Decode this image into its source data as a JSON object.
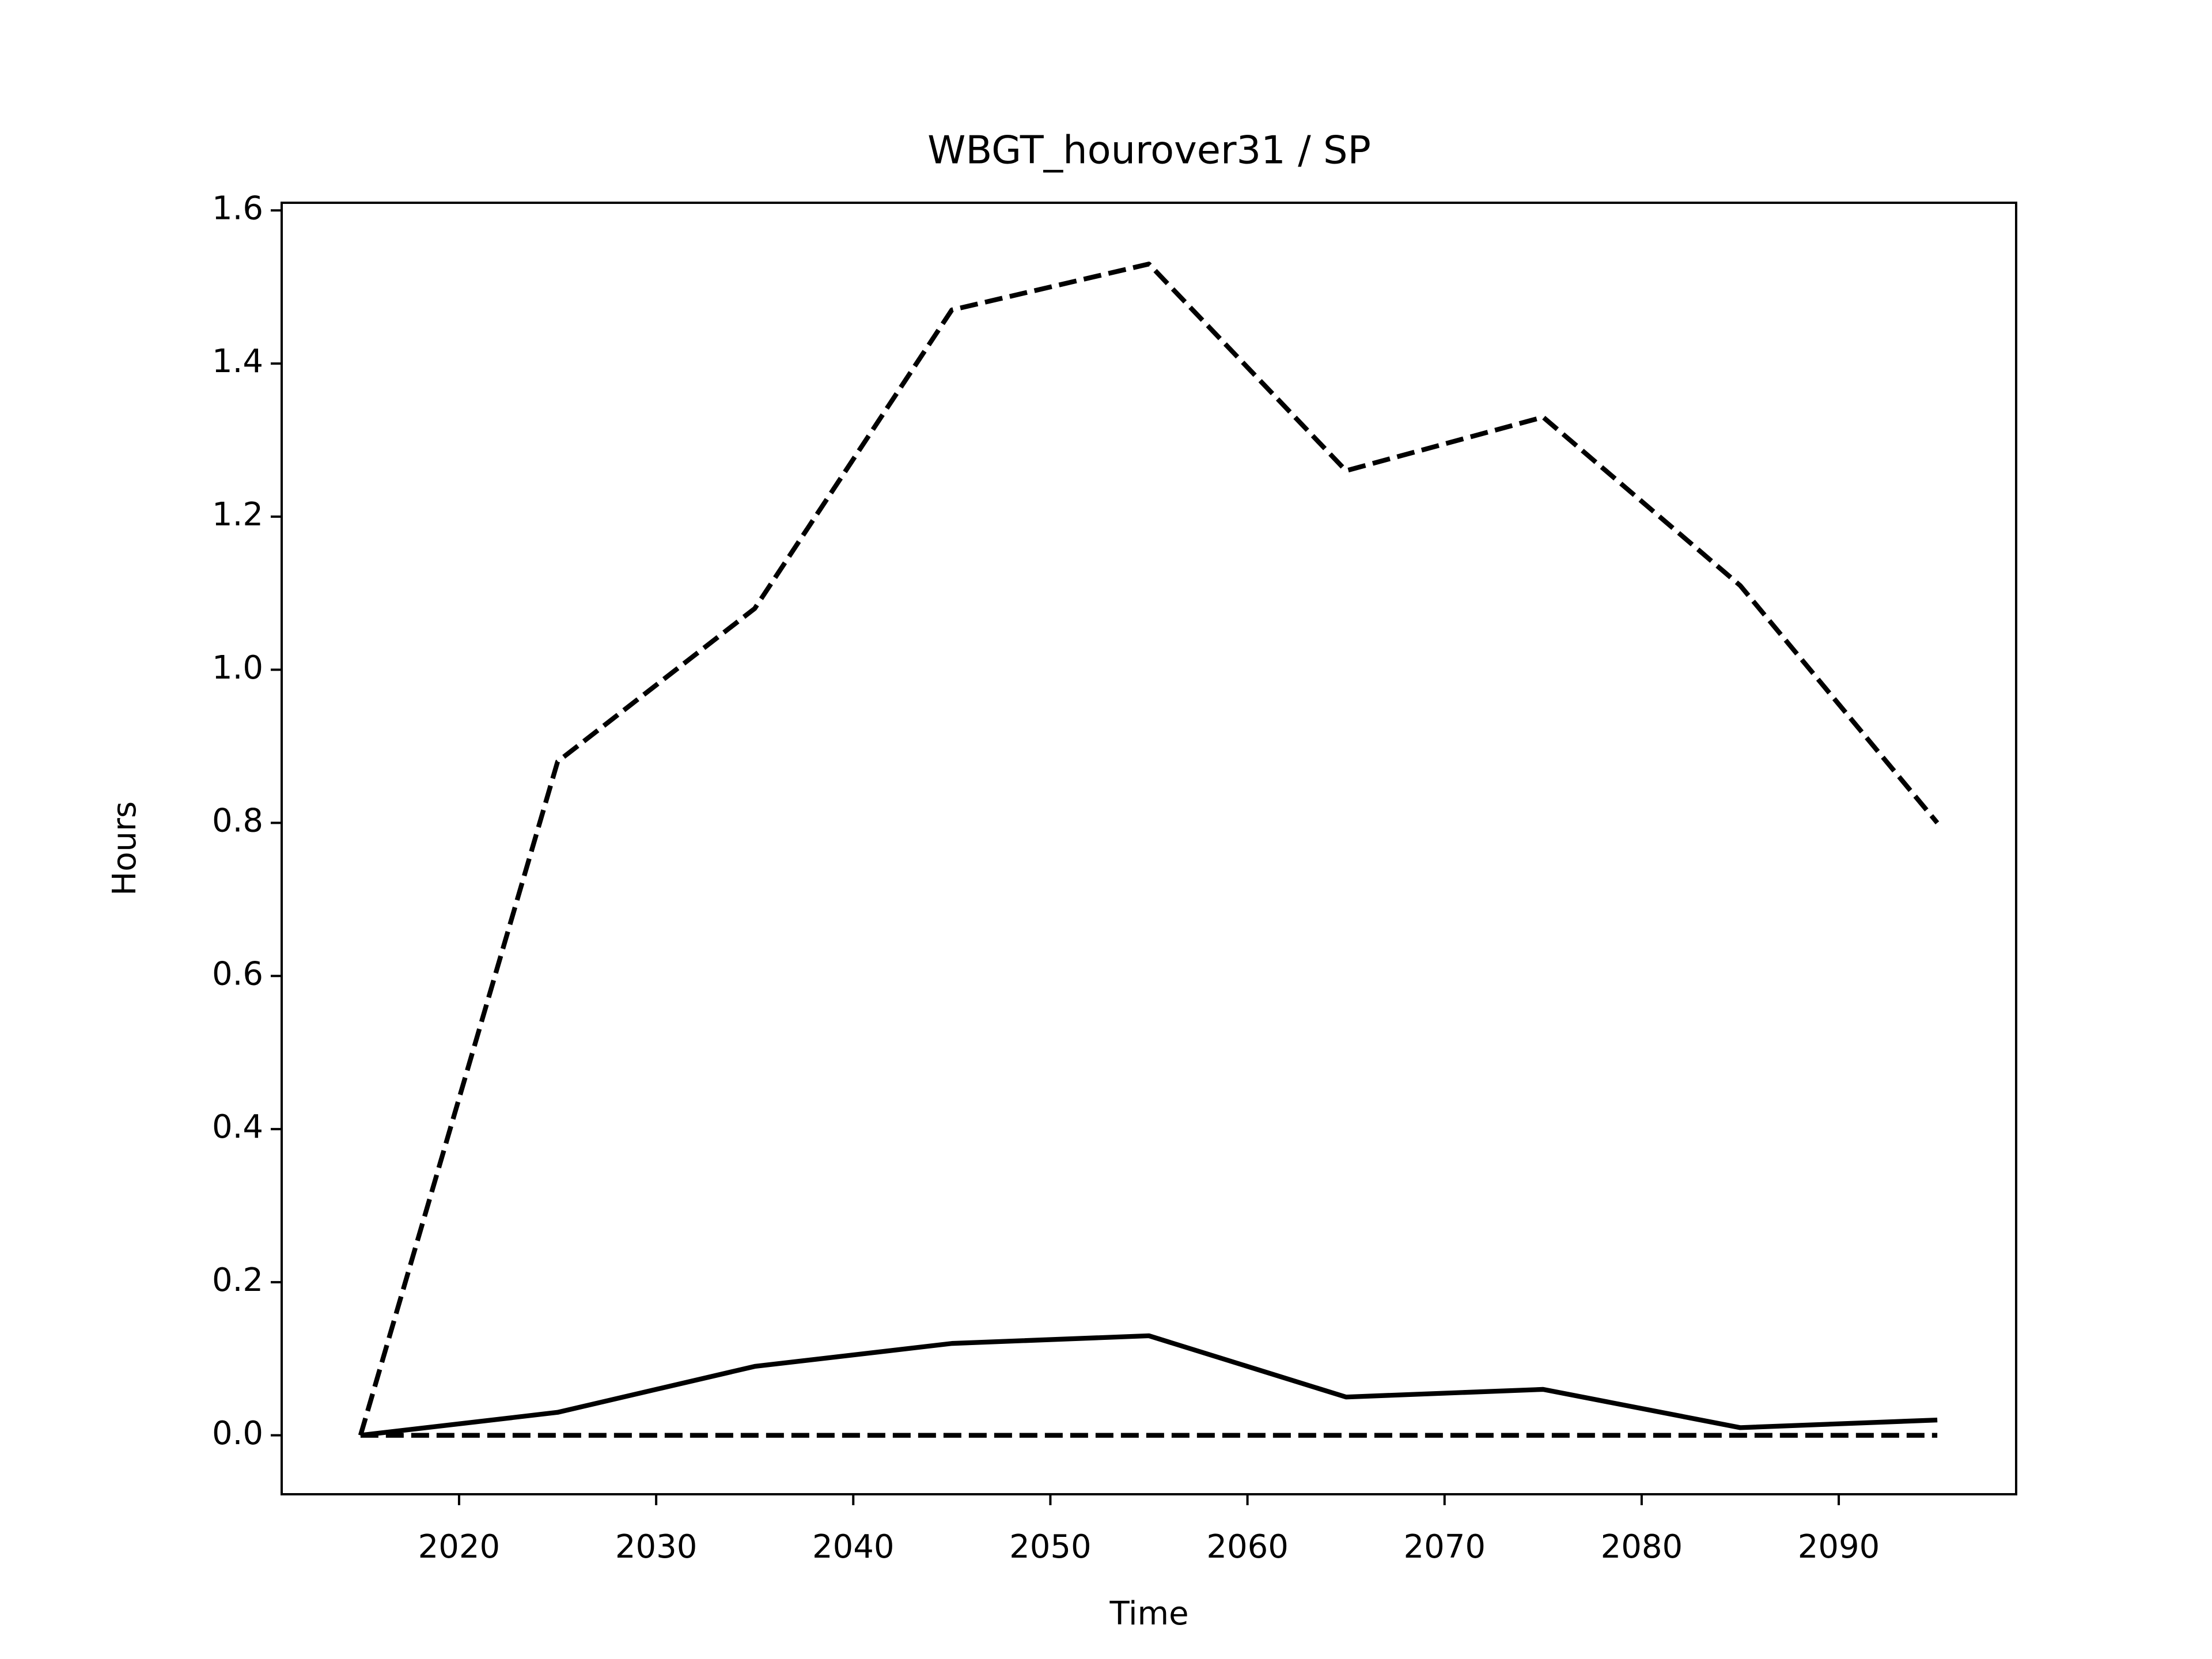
{
  "chart_data": {
    "type": "line",
    "title": "WBGT_hourover31 / SP",
    "xlabel": "Time",
    "ylabel": "Hours",
    "x": [
      2015,
      2025,
      2035,
      2045,
      2055,
      2065,
      2075,
      2085,
      2095
    ],
    "series": [
      {
        "color": "#000000",
        "linestyle": "dashed",
        "values": [
          0,
          0.88,
          1.08,
          1.47,
          1.53,
          1.26,
          1.33,
          1.11,
          0.8
        ]
      },
      {
        "color": "#000000",
        "linestyle": "solid",
        "values": [
          0,
          0.03,
          0.09,
          0.12,
          0.13,
          0.05,
          0.06,
          0.01,
          0.02
        ]
      },
      {
        "color": "#000000",
        "linestyle": "dashed",
        "values": [
          0,
          0,
          0,
          0,
          0,
          0,
          0,
          0,
          0
        ]
      }
    ],
    "xlim": [
      2011,
      2099
    ],
    "xticks": [
      2020,
      2030,
      2040,
      2050,
      2060,
      2070,
      2080,
      2090
    ],
    "ylim": [
      -0.077,
      1.61
    ],
    "yticks": [
      {
        "value": 0,
        "label": "0.0"
      },
      {
        "value": 0.2,
        "label": "0.2"
      },
      {
        "value": 0.4,
        "label": "0.4"
      },
      {
        "value": 0.6,
        "label": "0.6"
      },
      {
        "value": 0.8,
        "label": "0.8"
      },
      {
        "value": 1.0,
        "label": "1.0"
      },
      {
        "value": 1.2,
        "label": "1.2"
      },
      {
        "value": 1.4,
        "label": "1.4"
      },
      {
        "value": 1.6,
        "label": "1.6"
      }
    ],
    "grid": false
  }
}
